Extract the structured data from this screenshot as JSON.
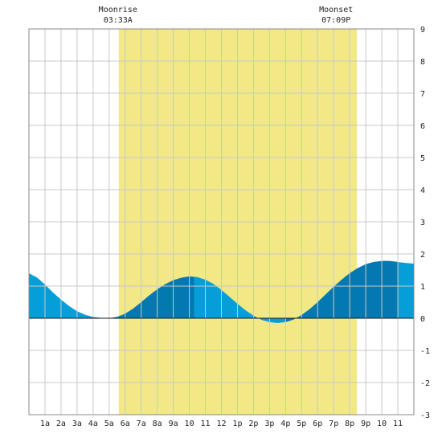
{
  "chart_data": {
    "type": "area",
    "title": "",
    "xlabel": "",
    "ylabel": "",
    "xlim": [
      0,
      24
    ],
    "ylim": [
      -3,
      9
    ],
    "grid": true,
    "x_ticks": [
      {
        "x": 1,
        "label": "1a"
      },
      {
        "x": 2,
        "label": "2a"
      },
      {
        "x": 3,
        "label": "3a"
      },
      {
        "x": 4,
        "label": "4a"
      },
      {
        "x": 5,
        "label": "5a"
      },
      {
        "x": 6,
        "label": "6a"
      },
      {
        "x": 7,
        "label": "7a"
      },
      {
        "x": 8,
        "label": "8a"
      },
      {
        "x": 9,
        "label": "9a"
      },
      {
        "x": 10,
        "label": "10"
      },
      {
        "x": 11,
        "label": "11"
      },
      {
        "x": 12,
        "label": "12"
      },
      {
        "x": 13,
        "label": "1p"
      },
      {
        "x": 14,
        "label": "2p"
      },
      {
        "x": 15,
        "label": "3p"
      },
      {
        "x": 16,
        "label": "4p"
      },
      {
        "x": 17,
        "label": "5p"
      },
      {
        "x": 18,
        "label": "6p"
      },
      {
        "x": 19,
        "label": "7p"
      },
      {
        "x": 20,
        "label": "8p"
      },
      {
        "x": 21,
        "label": "9p"
      },
      {
        "x": 22,
        "label": "10"
      },
      {
        "x": 23,
        "label": "11"
      }
    ],
    "y_ticks": [
      -3,
      -2,
      -1,
      0,
      1,
      2,
      3,
      4,
      5,
      6,
      7,
      8,
      9
    ],
    "daylight_band": {
      "start": 5.6,
      "end": 20.45
    },
    "moon_events": [
      {
        "name": "Moonrise",
        "time": "03:33A",
        "x": 5.55
      },
      {
        "name": "Moonset",
        "time": "07:09P",
        "x": 19.15
      }
    ],
    "series": [
      {
        "values": [
          {
            "x": 0,
            "y": 1.4
          },
          {
            "x": 0.5,
            "y": 1.27
          },
          {
            "x": 1,
            "y": 1.05
          },
          {
            "x": 1.5,
            "y": 0.8
          },
          {
            "x": 2,
            "y": 0.58
          },
          {
            "x": 2.5,
            "y": 0.38
          },
          {
            "x": 3,
            "y": 0.22
          },
          {
            "x": 3.5,
            "y": 0.11
          },
          {
            "x": 4,
            "y": 0.04
          },
          {
            "x": 4.5,
            "y": 0.01
          },
          {
            "x": 5,
            "y": 0.0
          },
          {
            "x": 5.5,
            "y": 0.04
          },
          {
            "x": 6,
            "y": 0.14
          },
          {
            "x": 6.5,
            "y": 0.3
          },
          {
            "x": 7,
            "y": 0.5
          },
          {
            "x": 7.5,
            "y": 0.71
          },
          {
            "x": 8,
            "y": 0.9
          },
          {
            "x": 8.5,
            "y": 1.06
          },
          {
            "x": 9,
            "y": 1.18
          },
          {
            "x": 9.5,
            "y": 1.26
          },
          {
            "x": 10,
            "y": 1.3
          },
          {
            "x": 10.5,
            "y": 1.28
          },
          {
            "x": 11,
            "y": 1.2
          },
          {
            "x": 11.5,
            "y": 1.07
          },
          {
            "x": 12,
            "y": 0.88
          },
          {
            "x": 12.5,
            "y": 0.67
          },
          {
            "x": 13,
            "y": 0.45
          },
          {
            "x": 13.5,
            "y": 0.25
          },
          {
            "x": 14,
            "y": 0.08
          },
          {
            "x": 14.5,
            "y": -0.05
          },
          {
            "x": 15,
            "y": -0.12
          },
          {
            "x": 15.5,
            "y": -0.15
          },
          {
            "x": 16,
            "y": -0.12
          },
          {
            "x": 16.5,
            "y": -0.04
          },
          {
            "x": 17,
            "y": 0.1
          },
          {
            "x": 17.5,
            "y": 0.28
          },
          {
            "x": 18,
            "y": 0.5
          },
          {
            "x": 18.5,
            "y": 0.74
          },
          {
            "x": 19,
            "y": 0.98
          },
          {
            "x": 19.5,
            "y": 1.2
          },
          {
            "x": 20,
            "y": 1.4
          },
          {
            "x": 20.5,
            "y": 1.56
          },
          {
            "x": 21,
            "y": 1.68
          },
          {
            "x": 21.5,
            "y": 1.75
          },
          {
            "x": 22,
            "y": 1.78
          },
          {
            "x": 22.5,
            "y": 1.78
          },
          {
            "x": 23,
            "y": 1.75
          },
          {
            "x": 23.5,
            "y": 1.72
          },
          {
            "x": 24,
            "y": 1.7
          }
        ],
        "rising_segments": [
          {
            "start": 5.0,
            "end": 10.3
          },
          {
            "start": 16.0,
            "end": 23.0
          }
        ]
      }
    ]
  },
  "colors": {
    "background": "#ffffff",
    "daylight": "#f2e986",
    "grid": "#c8c8c8",
    "frame": "#888888",
    "tide_fill": "#069ed8",
    "tide_rising": "#0478b0",
    "label": "#222222"
  }
}
